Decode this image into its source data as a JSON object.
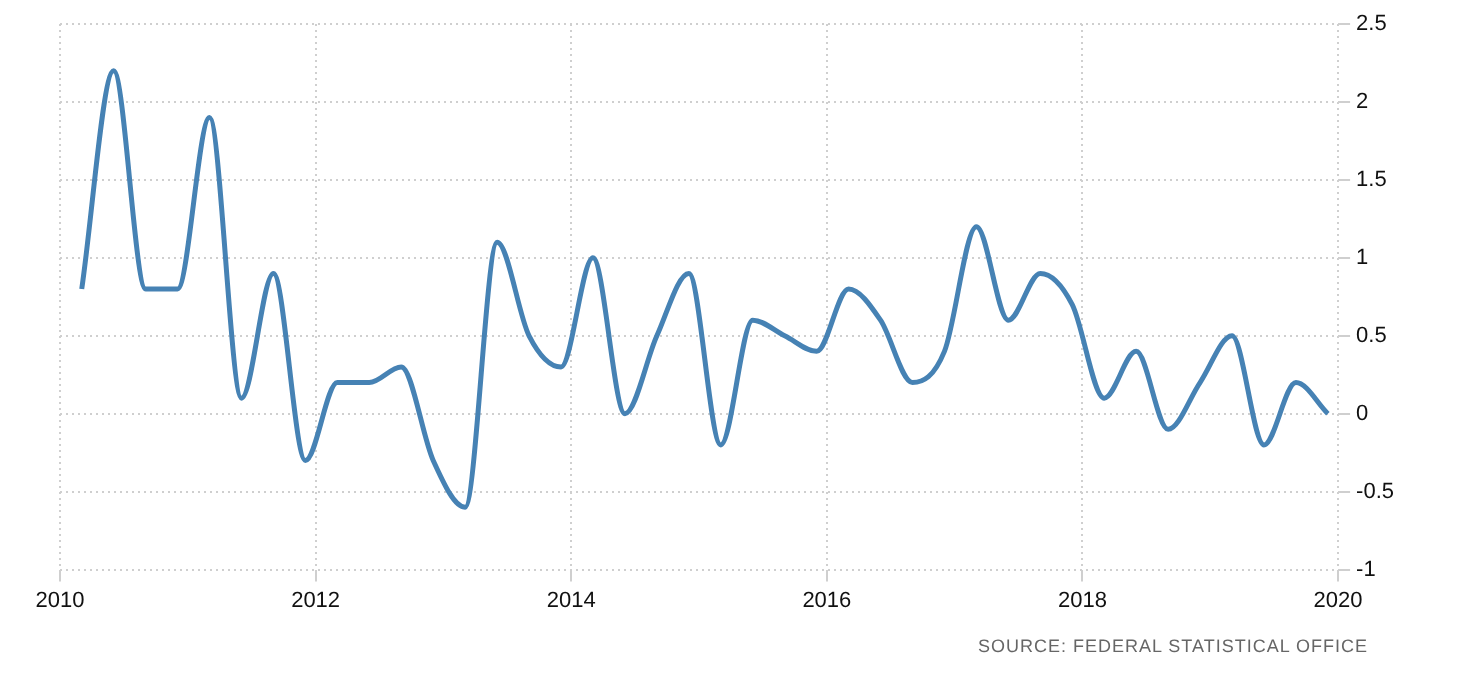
{
  "chart_data": {
    "type": "line",
    "x": [
      2010.17,
      2010.42,
      2010.67,
      2010.92,
      2011.17,
      2011.42,
      2011.67,
      2011.92,
      2012.17,
      2012.42,
      2012.67,
      2012.92,
      2013.17,
      2013.42,
      2013.67,
      2013.92,
      2014.17,
      2014.42,
      2014.67,
      2014.92,
      2015.17,
      2015.42,
      2015.67,
      2015.92,
      2016.17,
      2016.42,
      2016.67,
      2016.92,
      2017.17,
      2017.42,
      2017.67,
      2017.92,
      2018.17,
      2018.42,
      2018.67,
      2018.92,
      2019.17,
      2019.42,
      2019.67,
      2019.92
    ],
    "series": [
      {
        "color": "#4682b4",
        "values": [
          0.8,
          2.2,
          0.8,
          0.8,
          1.9,
          0.1,
          0.9,
          -0.3,
          0.2,
          0.2,
          0.3,
          -0.3,
          -0.6,
          1.1,
          0.5,
          0.3,
          1.0,
          0.0,
          0.5,
          0.9,
          -0.2,
          0.6,
          0.5,
          0.4,
          0.8,
          0.6,
          0.2,
          0.4,
          1.2,
          0.6,
          0.9,
          0.7,
          0.1,
          0.4,
          -0.1,
          0.2,
          0.5,
          -0.2,
          0.2,
          0.0
        ]
      }
    ],
    "xlim": [
      2010,
      2020
    ],
    "xticks": [
      2010,
      2012,
      2014,
      2016,
      2018,
      2020
    ],
    "ylim": [
      -1,
      2.5
    ],
    "yticks": [
      -1,
      -0.5,
      0,
      0.5,
      1,
      1.5,
      2,
      2.5
    ],
    "grid": true,
    "legend": false,
    "marker": "none",
    "line_style": "solid",
    "annotations": [
      "SOURCE: FEDERAL STATISTICAL OFFICE"
    ]
  }
}
